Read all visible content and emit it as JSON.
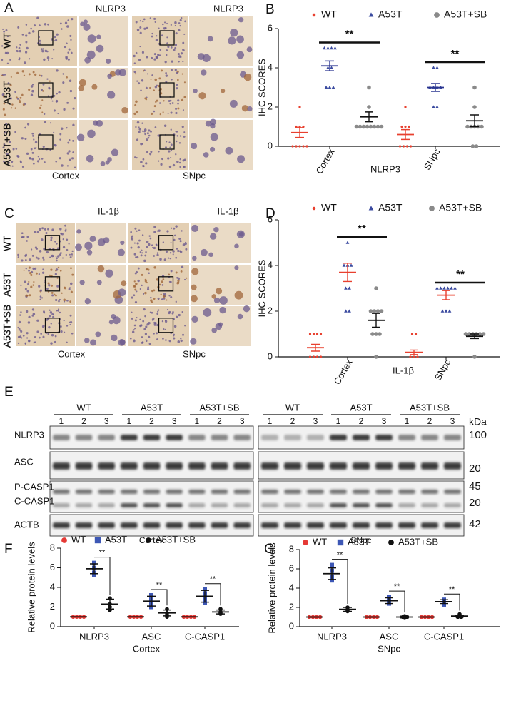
{
  "panel_a": {
    "label": "A",
    "marker": "NLRP3",
    "rows": [
      "WT",
      "A53T",
      "A53T+SB"
    ],
    "regions": [
      "Cortex",
      "SNpc"
    ]
  },
  "panel_c": {
    "label": "C",
    "marker": "IL-1β",
    "rows": [
      "WT",
      "A53T",
      "A53T+SB"
    ],
    "regions": [
      "Cortex",
      "SNpc"
    ]
  },
  "panel_e": {
    "label": "E",
    "groups": [
      "WT",
      "A53T",
      "A53T+SB"
    ],
    "lanes": [
      1,
      2,
      3
    ],
    "proteins": [
      "NLRP3",
      "ASC",
      "P-CASP1",
      "C-CASP1",
      "ACTB"
    ],
    "unit": "kDa",
    "weights": [
      100,
      20,
      45,
      20,
      42
    ],
    "regions": [
      "Cortex",
      "SNpc"
    ]
  },
  "chart_data": [
    {
      "type": "scatter",
      "panel": "B",
      "categories": [
        "Cortex",
        "SNpc"
      ],
      "xlabel": "NLRP3",
      "ylabel": "IHC SCORES",
      "ylim": [
        0,
        6
      ],
      "yticks": [
        0,
        2,
        4,
        6
      ],
      "annotations": [
        "**",
        "**"
      ],
      "series": [
        {
          "name": "WT",
          "color": "#e8402f",
          "mean_color": "#e8402f",
          "marker": "dot",
          "values": [
            0.7,
            0.6
          ],
          "errors": [
            0.25,
            0.25
          ],
          "points": [
            [
              2,
              1,
              1,
              1,
              0,
              0,
              0,
              0,
              0
            ],
            [
              2,
              1,
              1,
              1,
              0,
              0,
              0,
              0
            ]
          ]
        },
        {
          "name": "A53T",
          "color": "#3b4ba0",
          "mean_color": "#2a3590",
          "marker": "triangle",
          "values": [
            4.1,
            3.0
          ],
          "errors": [
            0.25,
            0.2
          ],
          "points": [
            [
              5,
              5,
              5,
              5,
              4,
              4,
              3,
              3,
              3
            ],
            [
              4,
              4,
              3,
              3,
              3,
              3,
              2,
              2
            ]
          ]
        },
        {
          "name": "A53T+SB",
          "color": "#8a8a8a",
          "mean_color": "#111111",
          "marker": "circle",
          "values": [
            1.5,
            1.3
          ],
          "errors": [
            0.25,
            0.3
          ],
          "points": [
            [
              3,
              2,
              1,
              1,
              1,
              1,
              1,
              1,
              1,
              1
            ],
            [
              3,
              2,
              1,
              1,
              1,
              1,
              1,
              0,
              0
            ]
          ]
        }
      ]
    },
    {
      "type": "scatter",
      "panel": "D",
      "categories": [
        "Cortex",
        "SNpc"
      ],
      "xlabel": "IL-1β",
      "ylabel": "IHC SCORES",
      "ylim": [
        0,
        6
      ],
      "yticks": [
        0,
        2,
        4,
        6
      ],
      "annotations": [
        "**",
        "**"
      ],
      "series": [
        {
          "name": "WT",
          "color": "#e8402f",
          "mean_color": "#e8402f",
          "marker": "dot",
          "values": [
            0.4,
            0.2
          ],
          "errors": [
            0.15,
            0.1
          ],
          "points": [
            [
              1,
              1,
              1,
              1,
              0,
              0,
              0,
              0
            ],
            [
              1,
              1,
              0,
              0,
              0
            ]
          ]
        },
        {
          "name": "A53T",
          "color": "#3b4ba0",
          "mean_color": "#e8402f",
          "marker": "triangle",
          "values": [
            3.7,
            2.7
          ],
          "errors": [
            0.4,
            0.2
          ],
          "points": [
            [
              5,
              4,
              4,
              4,
              3,
              3,
              2,
              2
            ],
            [
              3,
              3,
              3,
              3,
              3,
              3,
              2,
              2,
              2
            ]
          ]
        },
        {
          "name": "A53T+SB",
          "color": "#8a8a8a",
          "mean_color": "#111111",
          "marker": "circle",
          "values": [
            1.6,
            0.9
          ],
          "errors": [
            0.3,
            0.1
          ],
          "points": [
            [
              3,
              2,
              2,
              2,
              2,
              1,
              1,
              1,
              0
            ],
            [
              1,
              1,
              1,
              1,
              1,
              1,
              0
            ]
          ]
        }
      ]
    },
    {
      "type": "scatter",
      "panel": "F",
      "categories": [
        "NLRP3",
        "ASC",
        "C-CASP1"
      ],
      "xlabel": "Cortex",
      "ylabel": "Relative protein levels",
      "ylim": [
        0,
        8
      ],
      "yticks": [
        0,
        2,
        4,
        6,
        8
      ],
      "annotations": [
        "**",
        "**",
        "**"
      ],
      "series": [
        {
          "name": "WT",
          "color": "#e53935",
          "mean_color": "#111111",
          "marker": "circle",
          "values": [
            1,
            1,
            1
          ],
          "errors": [
            0,
            0,
            0
          ],
          "points": [
            [
              1,
              1,
              1,
              1
            ],
            [
              1,
              1,
              1,
              1
            ],
            [
              1,
              1,
              1,
              1
            ]
          ]
        },
        {
          "name": "A53T",
          "color": "#3d57b5",
          "mean_color": "#111111",
          "marker": "square",
          "values": [
            5.9,
            2.6,
            3.1
          ],
          "errors": [
            0.5,
            0.5,
            0.6
          ],
          "points": [
            [
              6.5,
              6,
              5.5,
              5.3
            ],
            [
              3.2,
              2.8,
              2.4,
              2.0
            ],
            [
              3.8,
              3.3,
              2.8,
              2.4
            ]
          ]
        },
        {
          "name": "A53T+SB",
          "color": "#111111",
          "mean_color": "#111111",
          "marker": "circle",
          "values": [
            2.3,
            1.4,
            1.5
          ],
          "errors": [
            0.5,
            0.3,
            0.2
          ],
          "points": [
            [
              2.9,
              2.3,
              2.0,
              1.7
            ],
            [
              1.8,
              1.4,
              1.2,
              1.0
            ],
            [
              1.8,
              1.5,
              1.4,
              1.3
            ]
          ]
        }
      ]
    },
    {
      "type": "scatter",
      "panel": "G",
      "categories": [
        "NLRP3",
        "ASC",
        "C-CASP1"
      ],
      "xlabel": "SNpc",
      "ylabel": "Relative protein levels",
      "ylim": [
        0,
        8
      ],
      "yticks": [
        0,
        2,
        4,
        6,
        8
      ],
      "annotations": [
        "**",
        "**",
        "**"
      ],
      "series": [
        {
          "name": "WT",
          "color": "#e53935",
          "mean_color": "#111111",
          "marker": "circle",
          "values": [
            1,
            1,
            1
          ],
          "errors": [
            0,
            0,
            0
          ],
          "points": [
            [
              1,
              1,
              1,
              1
            ],
            [
              1,
              1,
              1,
              1
            ],
            [
              1,
              1,
              1,
              1
            ]
          ]
        },
        {
          "name": "A53T",
          "color": "#3d57b5",
          "mean_color": "#111111",
          "marker": "square",
          "values": [
            5.5,
            2.7,
            2.6
          ],
          "errors": [
            0.6,
            0.3,
            0.2
          ],
          "points": [
            [
              6.4,
              5.8,
              5.2,
              4.8
            ],
            [
              3.1,
              2.7,
              2.5,
              2.4
            ],
            [
              2.8,
              2.7,
              2.5,
              2.3
            ]
          ]
        },
        {
          "name": "A53T+SB",
          "color": "#111111",
          "mean_color": "#111111",
          "marker": "circle",
          "values": [
            1.8,
            1.0,
            1.1
          ],
          "errors": [
            0.2,
            0.1,
            0.1
          ],
          "points": [
            [
              2.0,
              1.8,
              1.7,
              1.6
            ],
            [
              1.1,
              1.0,
              1.0,
              0.9
            ],
            [
              1.3,
              1.1,
              1.0,
              1.0
            ]
          ]
        }
      ]
    }
  ]
}
